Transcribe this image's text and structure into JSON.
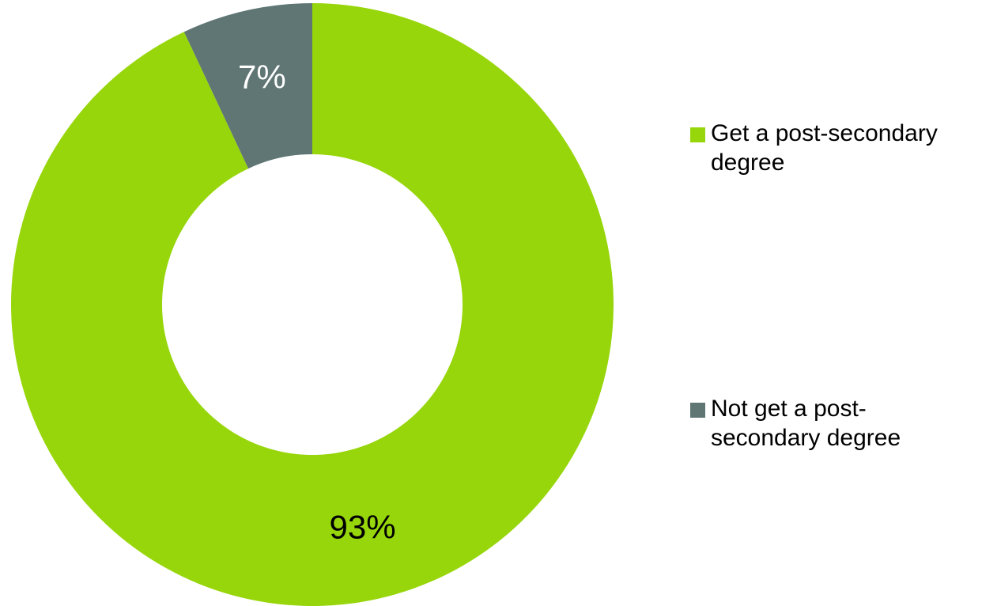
{
  "chart_data": {
    "type": "pie",
    "variant": "donut",
    "title": "",
    "slices": [
      {
        "label": "Get a post-secondary degree",
        "value": 93,
        "data_label": "93%",
        "color": "#97d60b",
        "label_color": "#000000"
      },
      {
        "label": "Not get a post-secondary degree",
        "value": 7,
        "data_label": "7%",
        "color": "#5f7674",
        "label_color": "#ffffff"
      }
    ],
    "legend": {
      "placement": "right",
      "items": [
        {
          "label": "Get a post-secondary degree",
          "color": "#97d60b"
        },
        {
          "label": "Not get a post-secondary degree",
          "color": "#5f7674"
        }
      ]
    }
  }
}
